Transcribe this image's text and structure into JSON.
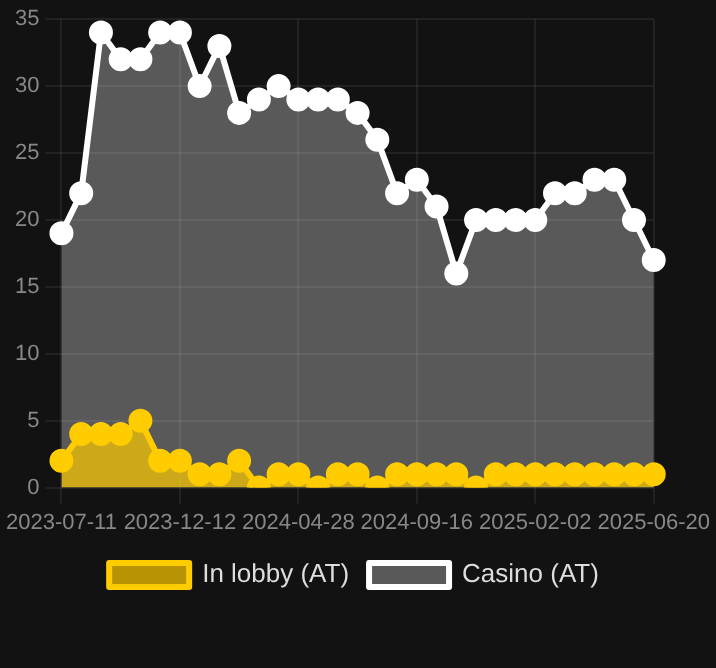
{
  "chart_data": {
    "type": "area",
    "categories": [
      "2023-07-11",
      null,
      null,
      null,
      null,
      null,
      "2023-12-12",
      null,
      null,
      null,
      null,
      null,
      "2024-04-28",
      null,
      null,
      null,
      null,
      null,
      "2024-09-16",
      null,
      null,
      null,
      null,
      null,
      "2025-02-02",
      null,
      null,
      null,
      null,
      null,
      "2025-06-20"
    ],
    "series": [
      {
        "name": "In lobby (AT)",
        "color": "#ffcc00",
        "values": [
          2,
          4,
          4,
          4,
          5,
          2,
          2,
          1,
          1,
          2,
          0,
          1,
          1,
          0,
          1,
          1,
          0,
          1,
          1,
          1,
          1,
          0,
          1,
          1,
          1,
          1,
          1,
          1,
          1,
          1,
          1
        ]
      },
      {
        "name": "Casino (AT)",
        "color": "#ffffff",
        "values": [
          19,
          22,
          34,
          32,
          32,
          34,
          34,
          30,
          33,
          28,
          29,
          30,
          29,
          29,
          29,
          28,
          26,
          22,
          23,
          21,
          16,
          20,
          20,
          20,
          20,
          22,
          22,
          23,
          23,
          20,
          17
        ]
      }
    ],
    "ylim": [
      0,
      35
    ],
    "yticks": [
      0,
      5,
      10,
      15,
      20,
      25,
      30,
      35
    ],
    "grid": true,
    "legend": "bottom",
    "marker": "circle"
  }
}
